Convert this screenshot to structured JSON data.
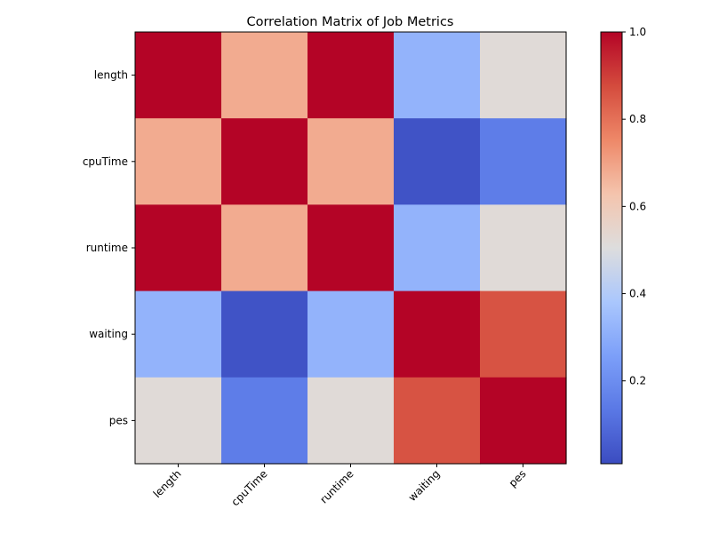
{
  "chart_data": {
    "type": "heatmap",
    "title": "Correlation Matrix of Job Metrics",
    "row_labels": [
      "length",
      "cpuTime",
      "runtime",
      "waiting",
      "pes"
    ],
    "col_labels": [
      "length",
      "cpuTime",
      "runtime",
      "waiting",
      "pes"
    ],
    "values": [
      [
        1.0,
        0.68,
        1.0,
        0.32,
        0.52
      ],
      [
        0.68,
        1.0,
        0.68,
        0.03,
        0.15
      ],
      [
        1.0,
        0.68,
        1.0,
        0.32,
        0.52
      ],
      [
        0.32,
        0.03,
        0.32,
        1.0,
        0.86
      ],
      [
        0.52,
        0.15,
        0.52,
        0.86,
        1.0
      ]
    ],
    "colormap": "coolwarm",
    "colorbar": {
      "range": [
        0.01,
        1.0
      ],
      "ticks": [
        0.2,
        0.4,
        0.6,
        0.8,
        1.0
      ],
      "tick_labels": [
        "0.2",
        "0.4",
        "0.6",
        "0.8",
        "1.0"
      ]
    },
    "x_tick_rotation_deg": 45,
    "grid": false
  }
}
